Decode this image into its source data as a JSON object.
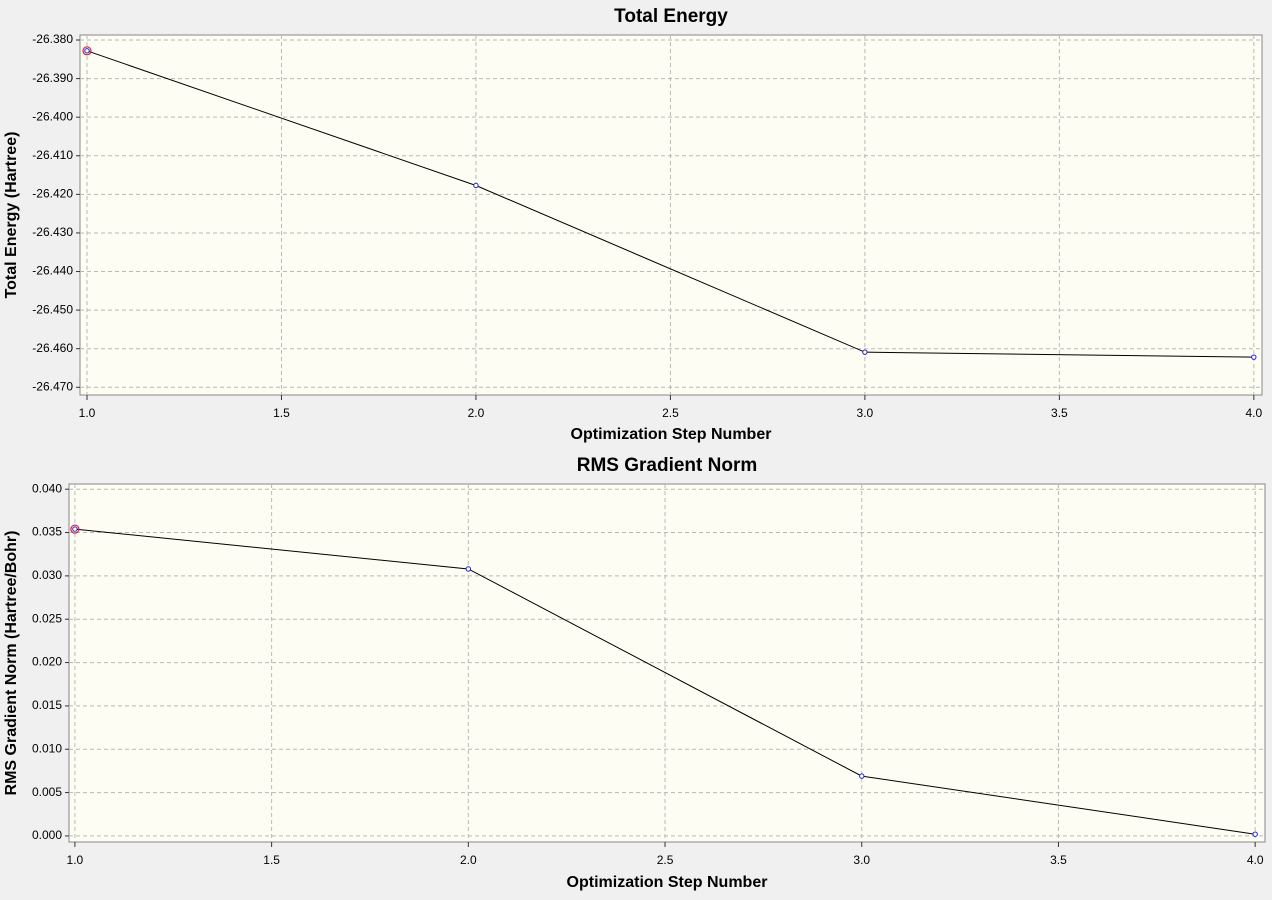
{
  "chart_data": [
    {
      "type": "line",
      "title": "Total Energy",
      "x_label": "Optimization Step Number",
      "y_label": "Total Energy (Hartree)",
      "x": [
        1,
        2,
        3,
        4
      ],
      "series": [
        {
          "color": "#000000",
          "marker_color": "#2020d0",
          "values": [
            -26.3828,
            -26.4177,
            -26.4609,
            -26.4622
          ]
        }
      ],
      "xlim": [
        0.982,
        4.021
      ],
      "ylim": [
        -26.472,
        -26.3787
      ],
      "xticks": [
        {
          "value": 1,
          "label": "1.0"
        },
        {
          "value": 1.5,
          "label": "1.5"
        },
        {
          "value": 2,
          "label": "2.0"
        },
        {
          "value": 2.5,
          "label": "2.5"
        },
        {
          "value": 3,
          "label": "3.0"
        },
        {
          "value": 3.5,
          "label": "3.5"
        },
        {
          "value": 4,
          "label": "4.0"
        }
      ],
      "yticks": [
        {
          "value": -26.38,
          "label": "-26.380"
        },
        {
          "value": -26.39,
          "label": "-26.390"
        },
        {
          "value": -26.4,
          "label": "-26.400"
        },
        {
          "value": -26.41,
          "label": "-26.410"
        },
        {
          "value": -26.42,
          "label": "-26.420"
        },
        {
          "value": -26.43,
          "label": "-26.430"
        },
        {
          "value": -26.44,
          "label": "-26.440"
        },
        {
          "value": -26.45,
          "label": "-26.450"
        },
        {
          "value": -26.46,
          "label": "-26.460"
        },
        {
          "value": -26.47,
          "label": "-26.470"
        }
      ],
      "grid": true
    },
    {
      "type": "line",
      "title": "RMS Gradient Norm",
      "x_label": "Optimization Step Number",
      "y_label": "RMS Gradient Norm (Hartree/Bohr)",
      "x": [
        1,
        2,
        3,
        4
      ],
      "series": [
        {
          "color": "#000000",
          "marker_color": "#2020d0",
          "values": [
            0.0354,
            0.0308,
            0.0069,
            0.0002
          ]
        }
      ],
      "xlim": [
        0.985,
        4.025
      ],
      "ylim": [
        -0.0007,
        0.0406
      ],
      "xticks": [
        {
          "value": 1,
          "label": "1.0"
        },
        {
          "value": 1.5,
          "label": "1.5"
        },
        {
          "value": 2,
          "label": "2.0"
        },
        {
          "value": 2.5,
          "label": "2.5"
        },
        {
          "value": 3,
          "label": "3.0"
        },
        {
          "value": 3.5,
          "label": "3.5"
        },
        {
          "value": 4,
          "label": "4.0"
        }
      ],
      "yticks": [
        {
          "value": 0,
          "label": "0.000"
        },
        {
          "value": 0.005,
          "label": "0.005"
        },
        {
          "value": 0.01,
          "label": "0.010"
        },
        {
          "value": 0.015,
          "label": "0.015"
        },
        {
          "value": 0.02,
          "label": "0.020"
        },
        {
          "value": 0.025,
          "label": "0.025"
        },
        {
          "value": 0.03,
          "label": "0.030"
        },
        {
          "value": 0.035,
          "label": "0.035"
        },
        {
          "value": 0.04,
          "label": "0.040"
        }
      ],
      "grid": true
    }
  ]
}
